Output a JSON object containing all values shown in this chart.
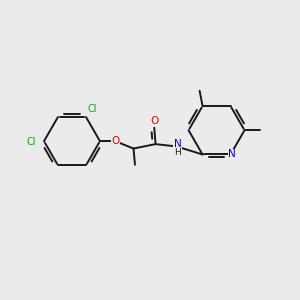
{
  "background_color": "#ebebeb",
  "bond_color": "#1a1a1a",
  "atom_colors": {
    "C": "#1a1a1a",
    "Cl": "#00aa00",
    "O": "#ee0000",
    "N": "#0000cc",
    "H": "#1a1a1a"
  },
  "figsize": [
    3.0,
    3.0
  ],
  "dpi": 100
}
